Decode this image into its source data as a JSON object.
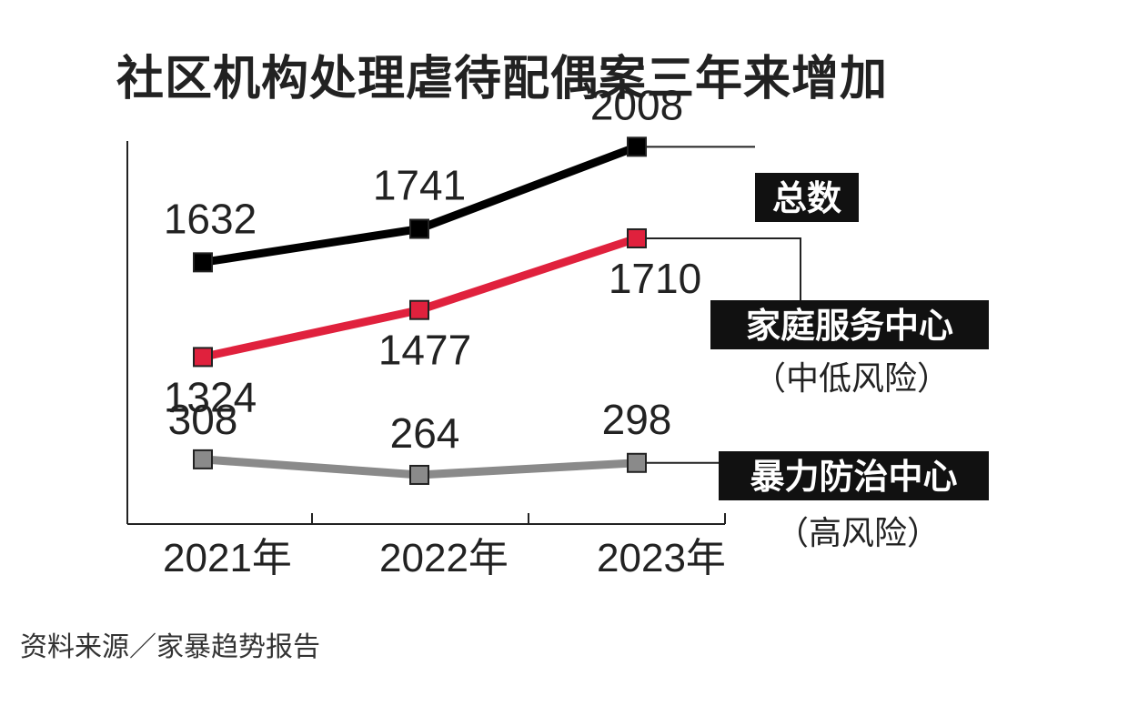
{
  "chart_data": {
    "type": "line",
    "title": "社区机构处理虐待配偶案三年来增加",
    "categories": [
      "2021年",
      "2022年",
      "2023年"
    ],
    "ylim": [
      0,
      2200
    ],
    "grid": false,
    "series": [
      {
        "name": "总数",
        "subtitle": "",
        "values": [
          1632,
          1741,
          2008
        ],
        "color": "#000000",
        "marker_fill": "#000000"
      },
      {
        "name": "家庭服务中心",
        "subtitle": "（中低风险）",
        "values": [
          1324,
          1477,
          1710
        ],
        "color": "#e0213d",
        "marker_fill": "#e0213d"
      },
      {
        "name": "暴力防治中心",
        "subtitle": "（高风险）",
        "values": [
          308,
          264,
          298
        ],
        "color": "#8a8a8a",
        "marker_fill": "#8a8a8a"
      }
    ]
  },
  "source": "资料来源／家暴趋势报告"
}
